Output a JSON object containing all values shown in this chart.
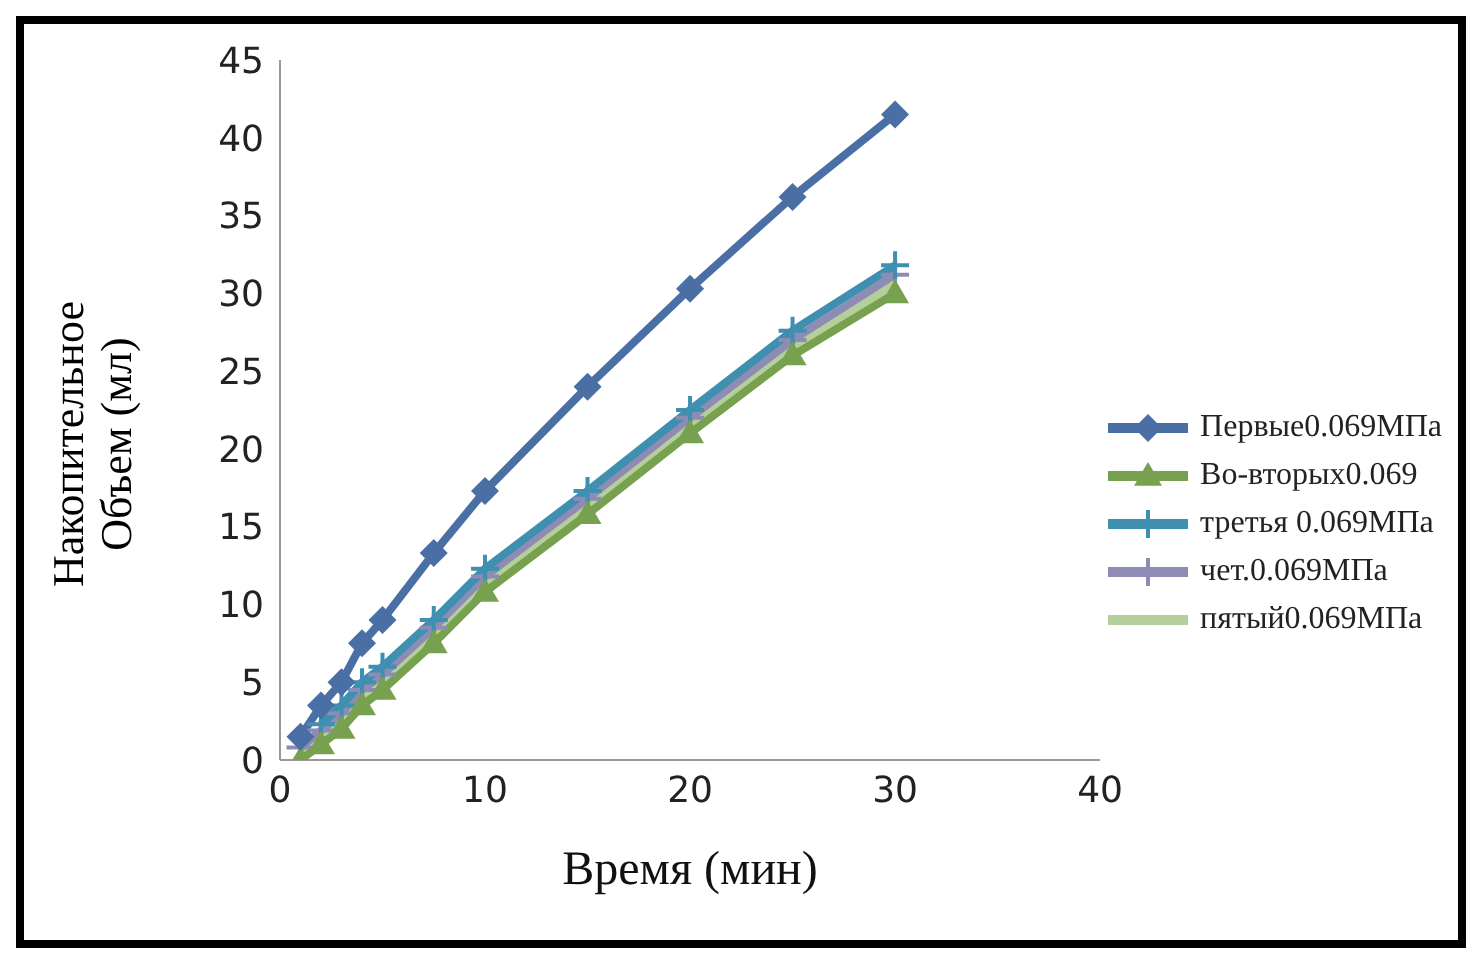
{
  "chart_data": {
    "type": "line",
    "xlabel": "Время (мин)",
    "ylabel": "Накопительное Объем (мл)",
    "x": [
      1,
      2,
      3,
      4,
      5,
      7.5,
      10,
      15,
      20,
      25,
      30
    ],
    "series": [
      {
        "name": "Первые0.069МПа",
        "color": "#4a6fa5",
        "marker": "diamond",
        "values": [
          1.5,
          3.5,
          5,
          7.5,
          9,
          13.3,
          17.3,
          24,
          30.3,
          36.2,
          41.5
        ]
      },
      {
        "name": "Во-вторых0.069",
        "color": "#77a14f",
        "marker": "triangle",
        "values": [
          0,
          1,
          2,
          3.5,
          4.5,
          7.5,
          10.8,
          15.8,
          21,
          26,
          30
        ]
      },
      {
        "name": "третья 0.069МПа",
        "color": "#3e8fb0",
        "marker": "cross",
        "values": [
          null,
          2.3,
          3.5,
          5,
          6,
          9,
          12.3,
          17.3,
          22.5,
          27.6,
          31.8
        ]
      },
      {
        "name": "чет.0.069МПа",
        "color": "#8e8cb5",
        "marker": "cross",
        "values": [
          0.8,
          1.9,
          3,
          4.5,
          5.5,
          8.5,
          11.8,
          16.8,
          22,
          27,
          31.2
        ]
      },
      {
        "name": "пятый0.069МПа",
        "color": "#b5cf9a",
        "marker": "none",
        "values": [
          0.4,
          1.5,
          2.5,
          4,
          5,
          8,
          11.3,
          16.3,
          21.5,
          26.5,
          30.6
        ]
      }
    ],
    "xlim": [
      0,
      40
    ],
    "xticks": [
      0,
      10,
      20,
      30,
      40
    ],
    "ylim": [
      0,
      45
    ],
    "yticks": [
      0,
      5,
      10,
      15,
      20,
      25,
      30,
      35,
      40,
      45
    ],
    "grid": false,
    "legend": "right",
    "line_style": "solid"
  }
}
